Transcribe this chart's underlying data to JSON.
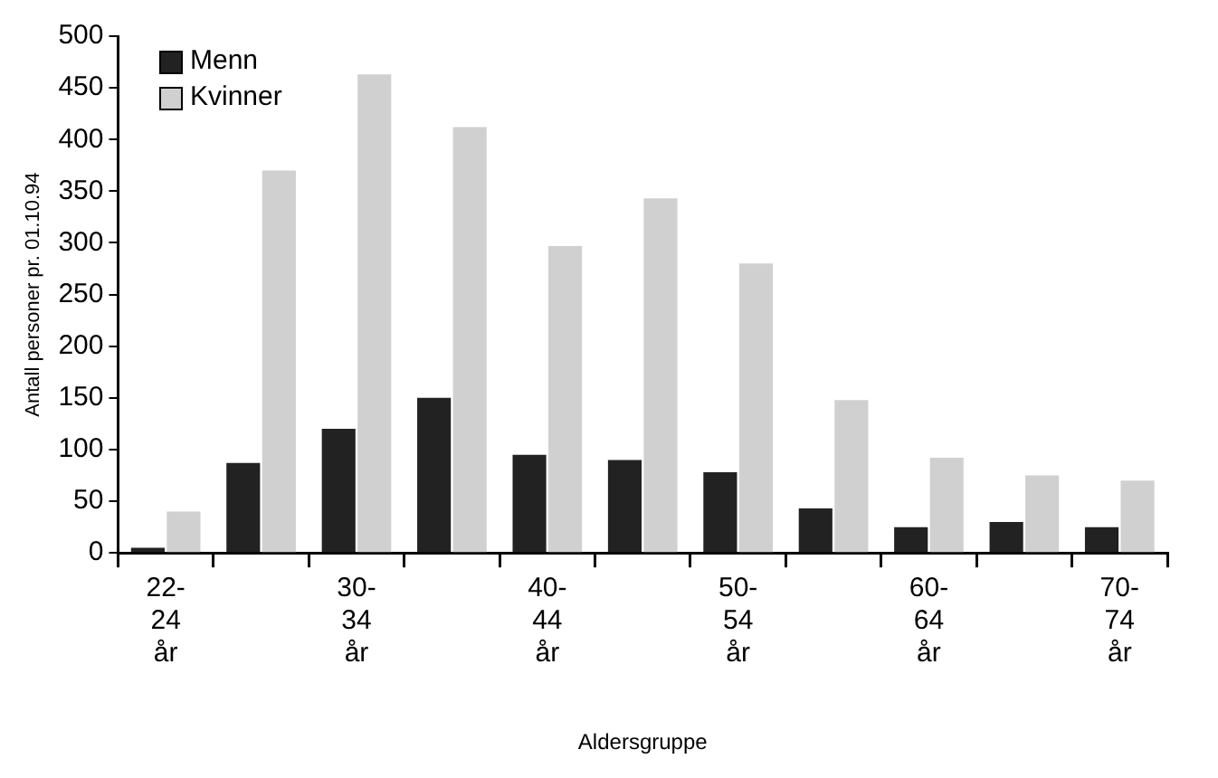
{
  "chart_data": {
    "type": "bar",
    "xlabel": "Aldersgruppe",
    "ylabel": "Antall personer pr. 01.10.94",
    "categories": [
      "22-24 år",
      null,
      "30-34 år",
      null,
      "40-44 år",
      null,
      "50-54 år",
      null,
      "60-64 år",
      null,
      "70-74 år"
    ],
    "series": [
      {
        "name": "Menn",
        "color": "#222222",
        "values": [
          5,
          87,
          120,
          150,
          95,
          90,
          78,
          43,
          25,
          30,
          25
        ]
      },
      {
        "name": "Kvinner",
        "color": "#d0d0d0",
        "values": [
          40,
          370,
          463,
          412,
          297,
          343,
          280,
          148,
          92,
          75,
          70
        ]
      }
    ],
    "ylim": [
      0,
      500
    ],
    "yticks": [
      0,
      50,
      100,
      150,
      200,
      250,
      300,
      350,
      400,
      450,
      500
    ],
    "grid": false,
    "legend": "top left"
  }
}
